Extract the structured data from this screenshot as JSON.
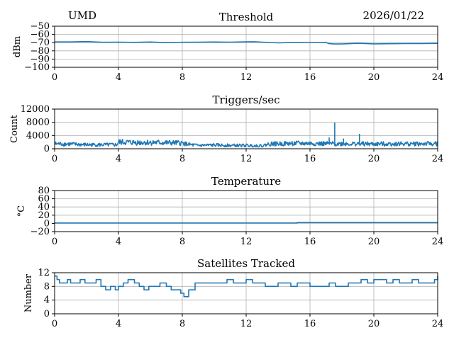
{
  "header": {
    "station": "UMD",
    "date": "2026/01/22"
  },
  "style": {
    "series_color": "#1f77b4",
    "grid_color": "#b0b0b0"
  },
  "chart_data": [
    {
      "type": "line",
      "title": "Threshold",
      "ylabel": "dBm",
      "xlabel": "",
      "xlim": [
        0,
        24
      ],
      "ylim": [
        -100,
        -50
      ],
      "xticks": [
        0,
        4,
        8,
        12,
        16,
        20,
        24
      ],
      "yticks": [
        -100,
        -90,
        -80,
        -70,
        -60,
        -50
      ],
      "ytick_labels": [
        "−100",
        "−90",
        "−80",
        "−70",
        "−60",
        "−50"
      ],
      "grid": true,
      "style": "line",
      "series": [
        {
          "x": [
            0,
            1,
            2,
            3,
            4,
            5,
            6,
            7,
            8,
            9,
            10,
            11,
            12,
            12.5,
            13,
            14,
            15,
            16,
            17,
            17.2,
            17.5,
            18,
            19,
            20,
            21,
            22,
            23,
            24
          ],
          "y": [
            -69,
            -69,
            -69,
            -69.5,
            -69.5,
            -69.5,
            -69.5,
            -70,
            -69.5,
            -69.5,
            -69.5,
            -69.5,
            -69,
            -69,
            -69.5,
            -70,
            -70,
            -70,
            -70,
            -71,
            -71.5,
            -71.5,
            -71,
            -71.5,
            -71.5,
            -71,
            -71,
            -71
          ]
        }
      ]
    },
    {
      "type": "line",
      "title": "Triggers/sec",
      "ylabel": "Count",
      "xlabel": "",
      "xlim": [
        0,
        24
      ],
      "ylim": [
        0,
        12000
      ],
      "xticks": [
        0,
        4,
        8,
        12,
        16,
        20,
        24
      ],
      "yticks": [
        0,
        4000,
        8000,
        12000
      ],
      "ytick_labels": [
        "0",
        "4000",
        "8000",
        "12000"
      ],
      "grid": true,
      "style": "noisy",
      "series": [
        {
          "x": [
            0,
            1,
            2,
            3,
            3.9,
            4,
            5,
            6,
            7,
            8,
            8.5,
            9,
            10,
            11,
            12,
            13,
            13.5,
            14,
            15,
            16,
            17,
            17.5,
            18,
            19,
            20,
            21,
            22,
            23,
            24
          ],
          "y": [
            1500,
            1400,
            1200,
            1200,
            1200,
            2000,
            1900,
            1900,
            1800,
            1700,
            1200,
            1000,
            1100,
            1000,
            1000,
            900,
            1500,
            1500,
            1600,
            1600,
            1500,
            1500,
            1500,
            1500,
            1400,
            1500,
            1500,
            1500,
            1500
          ],
          "spikes": [
            {
              "x": 17.55,
              "y": 7900
            },
            {
              "x": 17.2,
              "y": 3400
            },
            {
              "x": 19.1,
              "y": 4500
            },
            {
              "x": 18.1,
              "y": 3100
            }
          ]
        }
      ]
    },
    {
      "type": "line",
      "title": "Temperature",
      "ylabel": "°C",
      "xlabel": "",
      "xlim": [
        0,
        24
      ],
      "ylim": [
        -20,
        80
      ],
      "xticks": [
        0,
        4,
        8,
        12,
        16,
        20,
        24
      ],
      "yticks": [
        -20,
        0,
        20,
        40,
        60,
        80
      ],
      "ytick_labels": [
        "−20",
        "0",
        "20",
        "40",
        "60",
        "80"
      ],
      "grid": true,
      "style": "line",
      "series": [
        {
          "x": [
            0,
            15.2,
            15.2,
            24
          ],
          "y": [
            1,
            1,
            2,
            2
          ]
        }
      ]
    },
    {
      "type": "line",
      "title": "Satellites Tracked",
      "ylabel": "Number",
      "xlabel": "",
      "xlim": [
        0,
        24
      ],
      "ylim": [
        0,
        12
      ],
      "xticks": [
        0,
        4,
        8,
        12,
        16,
        20,
        24
      ],
      "yticks": [
        0,
        4,
        8,
        12
      ],
      "ytick_labels": [
        "0",
        "4",
        "8",
        "12"
      ],
      "grid": true,
      "style": "step",
      "series": [
        {
          "x": [
            0,
            0.15,
            0.3,
            0.5,
            0.8,
            1,
            1.3,
            1.6,
            1.9,
            2.3,
            2.6,
            2.9,
            3.2,
            3.5,
            3.8,
            4,
            4.3,
            4.6,
            5,
            5.3,
            5.6,
            5.9,
            6.2,
            6.6,
            7,
            7.3,
            7.6,
            7.9,
            8.1,
            8.4,
            8.8,
            9.2,
            9.6,
            10,
            10.4,
            10.8,
            11.2,
            11.6,
            12,
            12.4,
            12.8,
            13.2,
            13.6,
            14,
            14.4,
            14.8,
            15.2,
            15.6,
            16,
            16.4,
            16.8,
            17.2,
            17.6,
            18,
            18.4,
            18.8,
            19.2,
            19.6,
            20,
            20.4,
            20.8,
            21.2,
            21.6,
            22,
            22.4,
            22.8,
            23.2,
            23.6,
            23.8,
            24
          ],
          "y": [
            11,
            10,
            9,
            9,
            10,
            9,
            9,
            10,
            9,
            9,
            10,
            8,
            7,
            8,
            7,
            8,
            9,
            10,
            9,
            8,
            7,
            8,
            8,
            9,
            8,
            7,
            7,
            6,
            5,
            7,
            9,
            9,
            9,
            9,
            9,
            10,
            9,
            9,
            10,
            9,
            9,
            8,
            8,
            9,
            9,
            8,
            9,
            9,
            8,
            8,
            8,
            9,
            8,
            8,
            9,
            9,
            10,
            9,
            10,
            10,
            9,
            10,
            9,
            9,
            10,
            9,
            9,
            9,
            10,
            11
          ]
        }
      ]
    }
  ]
}
